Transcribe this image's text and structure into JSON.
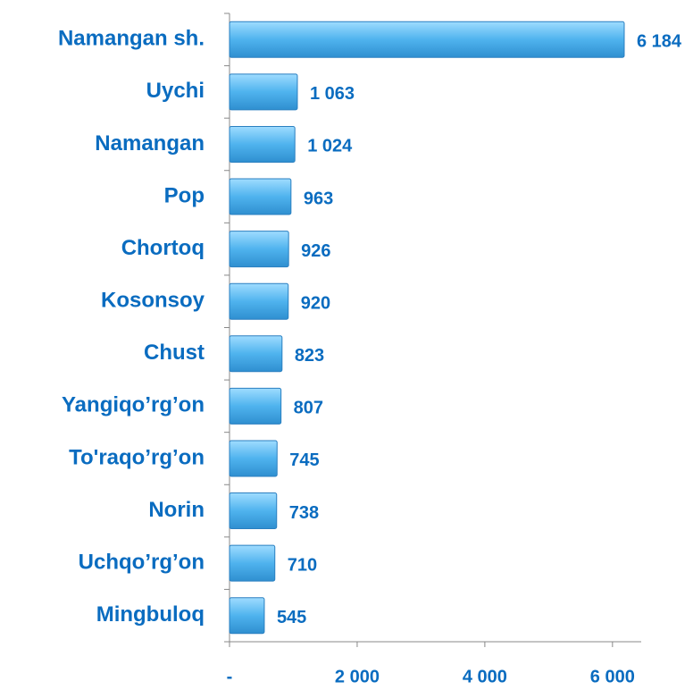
{
  "chart_data": {
    "type": "barh",
    "categories": [
      "Namangan sh.",
      "Uychi",
      "Namangan",
      "Pop",
      "Chortoq",
      "Kosonsoy",
      "Chust",
      "Yangiqo’rg’on",
      "To'raqo’rg’on",
      "Norin",
      "Uchqo’rg’on",
      "Mingbuloq"
    ],
    "values": [
      6184,
      1063,
      1024,
      963,
      926,
      920,
      823,
      807,
      745,
      738,
      710,
      545
    ],
    "value_labels": [
      "6 184",
      "1 063",
      "1 024",
      "963",
      "926",
      "920",
      "823",
      "807",
      "745",
      "738",
      "710",
      "545"
    ],
    "color": "#4fb3ee",
    "xlim": [
      0,
      6450
    ],
    "xticks": [
      {
        "value": 0,
        "label": "-"
      },
      {
        "value": 2000,
        "label": "2 000"
      },
      {
        "value": 4000,
        "label": "4 000"
      },
      {
        "value": 6000,
        "label": "6 000"
      }
    ]
  }
}
